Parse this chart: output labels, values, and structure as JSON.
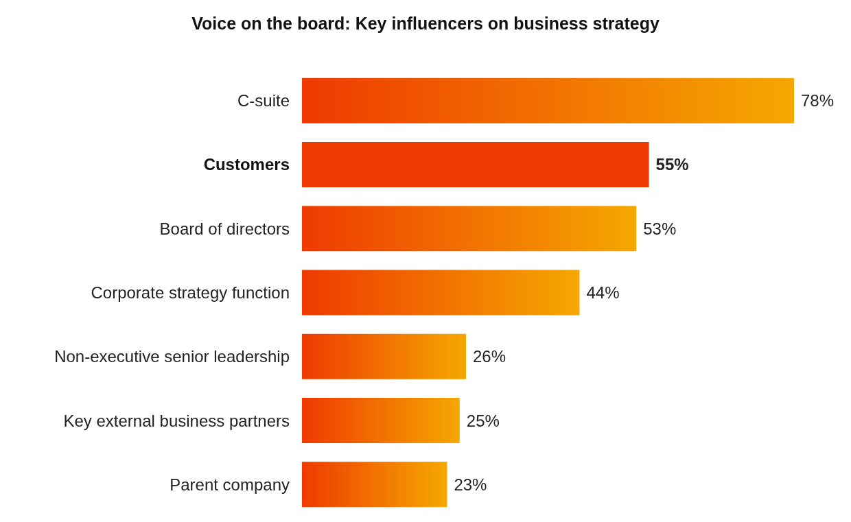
{
  "chart_data": {
    "type": "bar",
    "orientation": "horizontal",
    "title": "Voice on the board: Key influencers on business strategy",
    "categories": [
      "C-suite",
      "Customers",
      "Board of directors",
      "Corporate strategy function",
      "Non-executive senior leadership",
      "Key external business partners",
      "Parent company"
    ],
    "values": [
      78,
      55,
      53,
      44,
      26,
      25,
      23
    ],
    "colors": [
      "#f5a800",
      "#ee3a00",
      "#f5a800",
      "#f5a800",
      "#f5a800",
      "#f5a800",
      "#f5a800"
    ],
    "value_labels": [
      "78%",
      "55%",
      "53%",
      "44%",
      "26%",
      "25%",
      "23%"
    ]
  }
}
